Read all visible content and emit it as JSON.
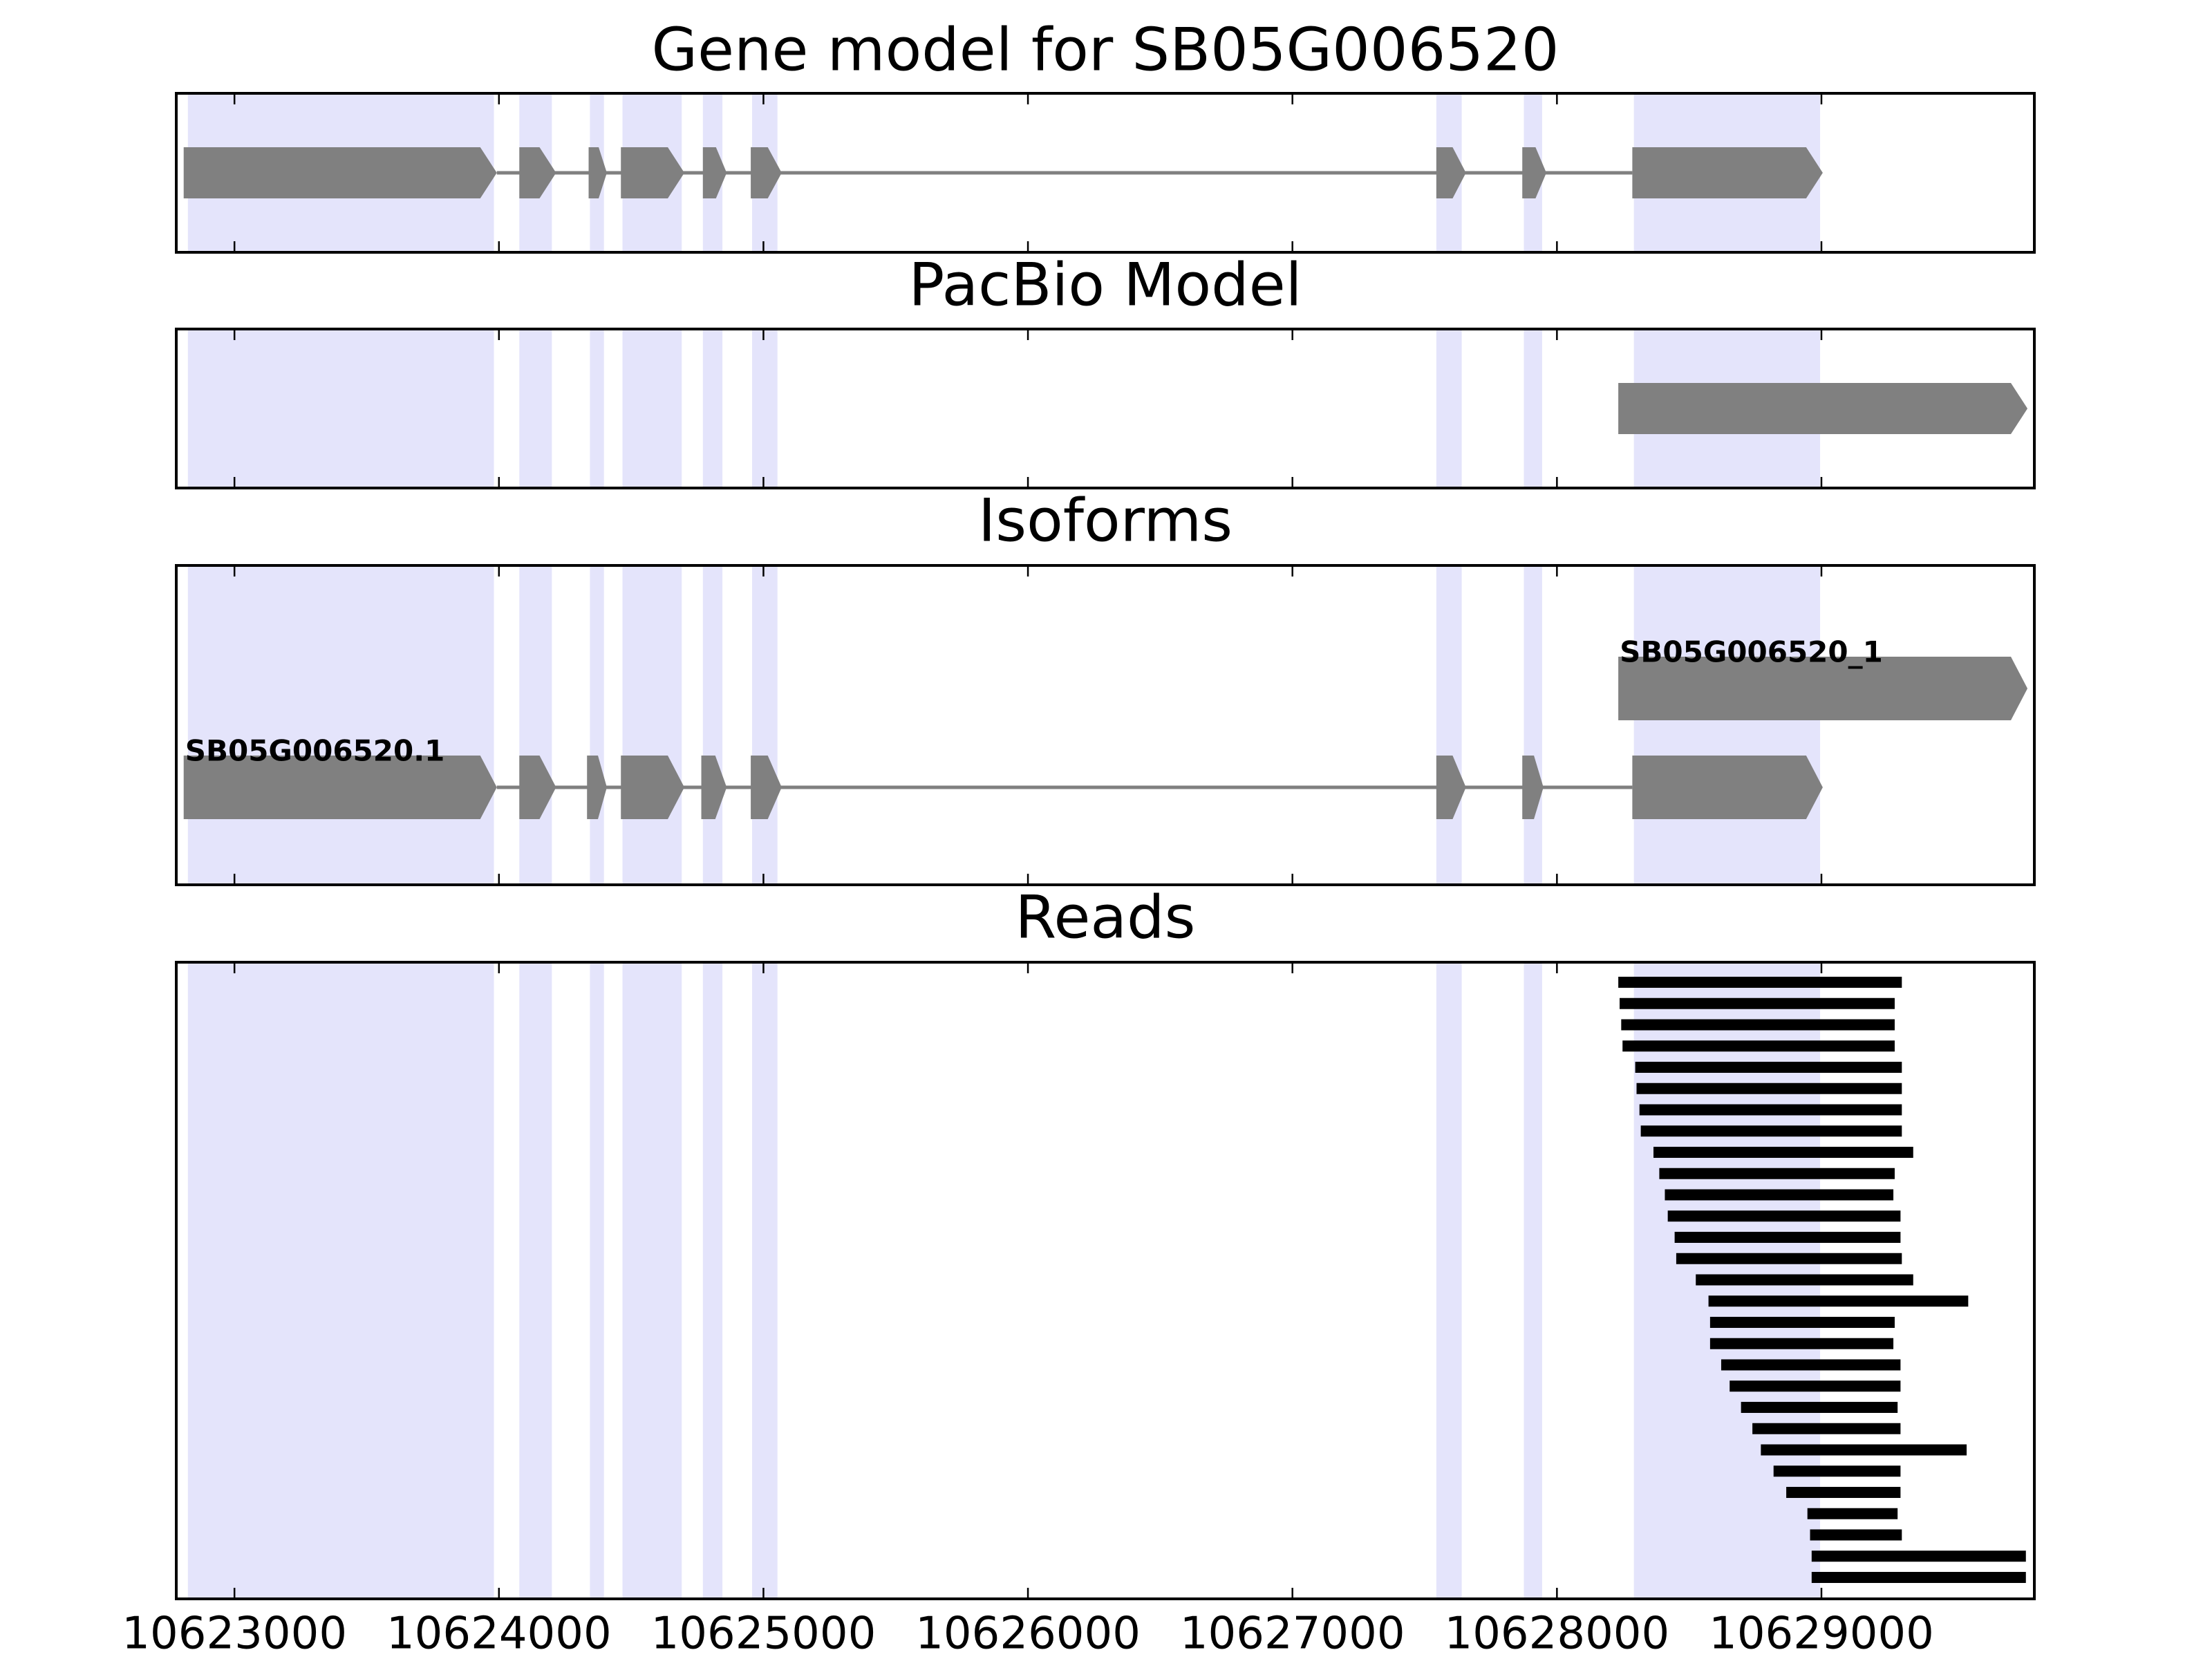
{
  "chart_data": [
    {
      "type": "gene",
      "title": "Gene model for SB05G006520",
      "color": "#808080",
      "highlight_color": "#e4e4fb",
      "highlight": {
        "start": [
          10622824,
          10624077,
          10624344,
          10624467,
          10624771,
          10624957,
          10627544,
          10627875,
          10628291
        ],
        "end": [
          10623981,
          10624200,
          10624397,
          10624691,
          10624845,
          10625053,
          10627640,
          10627944,
          10628995
        ]
      },
      "features": [
        {
          "start": [
            10622808,
            10624077,
            10624339,
            10624461,
            10624771,
            10624952,
            10627544,
            10627869,
            10628285
          ],
          "end": [
            10623992,
            10624216,
            10624408,
            10624701,
            10624861,
            10625069,
            10627656,
            10627960,
            10629005
          ]
        }
      ]
    },
    {
      "type": "gene",
      "title": "PacBio Model",
      "color": "#808080",
      "features": [
        {
          "start": [
            10628232
          ],
          "end": [
            10629779
          ]
        }
      ]
    },
    {
      "type": "gene",
      "title": "Isoforms",
      "color": "#808080",
      "features": [
        {
          "name": "SB05G006520.1",
          "start": [
            10622808,
            10624077,
            10624333,
            10624461,
            10624765,
            10624952,
            10627544,
            10627869,
            10628285
          ],
          "end": [
            10623992,
            10624216,
            10624408,
            10624701,
            10624861,
            10625069,
            10627656,
            10627949,
            10629005
          ]
        },
        {
          "name": "SB05G006520_1",
          "start": [
            10628232
          ],
          "end": [
            10629779
          ]
        }
      ]
    },
    {
      "type": "reads",
      "title": "Reads",
      "color": "#000000",
      "xlim": [
        10622780,
        10629805
      ],
      "xticks": [
        10623000,
        10624000,
        10625000,
        10626000,
        10627000,
        10628000,
        10629000
      ],
      "reads": {
        "start": [
          10628232,
          10628237,
          10628243,
          10628248,
          10628296,
          10628301,
          10628312,
          10628317,
          10628365,
          10628387,
          10628408,
          10628419,
          10628445,
          10628451,
          10628525,
          10628573,
          10628579,
          10628579,
          10628621,
          10628653,
          10628696,
          10628739,
          10628771,
          10628819,
          10628867,
          10628947,
          10628957,
          10628963,
          10628963
        ],
        "end": [
          10629304,
          10629277,
          10629277,
          10629277,
          10629304,
          10629304,
          10629304,
          10629304,
          10629347,
          10629277,
          10629272,
          10629299,
          10629299,
          10629304,
          10629347,
          10629555,
          10629277,
          10629272,
          10629299,
          10629299,
          10629288,
          10629299,
          10629549,
          10629299,
          10629299,
          10629288,
          10629304,
          10629773,
          10629773
        ]
      }
    }
  ]
}
